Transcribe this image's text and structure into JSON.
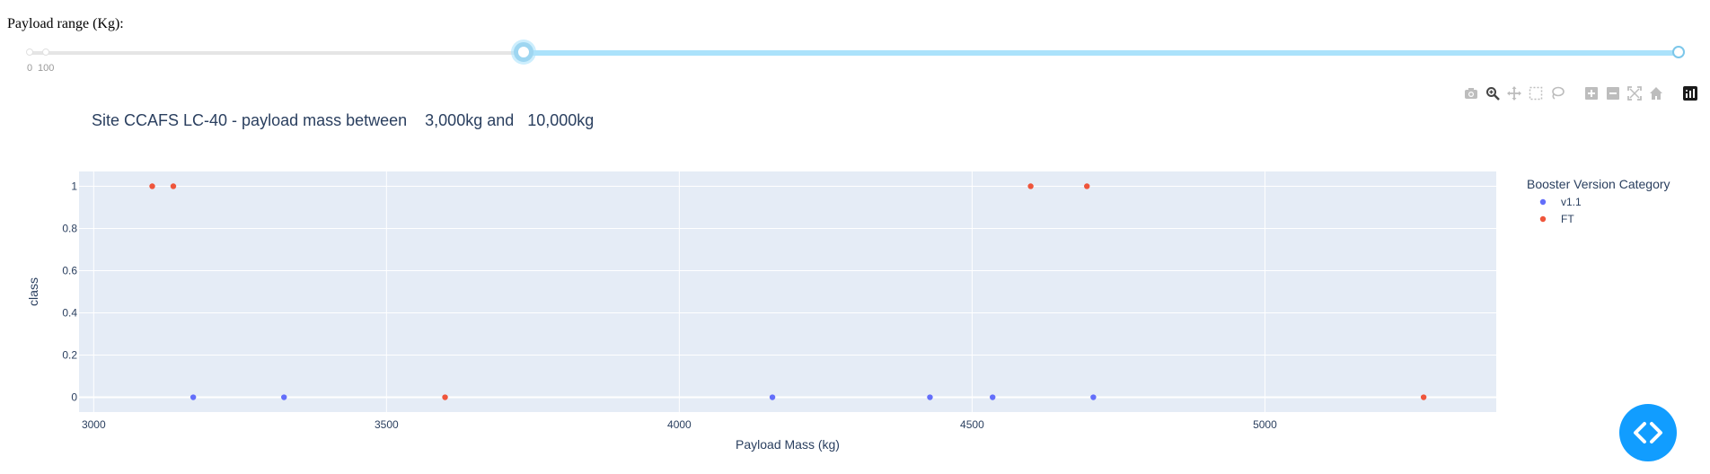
{
  "slider": {
    "label": "Payload range (Kg):",
    "marks": [
      "0",
      "100"
    ],
    "range": [
      3000,
      10000
    ]
  },
  "modebar": {
    "icons": [
      "camera-icon",
      "zoom-icon",
      "pan-icon",
      "box-select-icon",
      "lasso-select-icon",
      "zoom-in-icon",
      "zoom-out-icon",
      "autoscale-icon",
      "reset-axes-icon",
      "plotly-logo-icon"
    ]
  },
  "chart_title": "Site CCAFS LC-40 - payload mass between    3,000kg and   10,000kg",
  "chart_data": {
    "type": "scatter",
    "title": "Site CCAFS LC-40 - payload mass between    3,000kg and   10,000kg",
    "xlabel": "Payload Mass (kg)",
    "ylabel": "class",
    "xlim": [
      2975,
      5395
    ],
    "ylim": [
      -0.07,
      1.07
    ],
    "xticks": [
      3000,
      3500,
      4000,
      4500,
      5000
    ],
    "xtick_labels": [
      "3000",
      "3500",
      "4000",
      "4500",
      "5000"
    ],
    "yticks": [
      0,
      0.2,
      0.4,
      0.6,
      0.8,
      1
    ],
    "ytick_labels": [
      "0",
      "0.2",
      "0.4",
      "0.6",
      "0.8",
      "1"
    ],
    "grid": true,
    "legend_title": "Booster Version Category",
    "legend_placement": "right",
    "series": [
      {
        "name": "v1.1",
        "color": "#636efa",
        "x": [
          3170,
          3325,
          4159,
          4428,
          4535,
          4707
        ],
        "y": [
          0,
          0,
          0,
          0,
          0,
          0
        ]
      },
      {
        "name": "FT",
        "color": "#ef553b",
        "x": [
          3100,
          3136,
          3600,
          4600,
          4696,
          5271
        ],
        "y": [
          1,
          1,
          0,
          1,
          1,
          0
        ]
      }
    ]
  }
}
